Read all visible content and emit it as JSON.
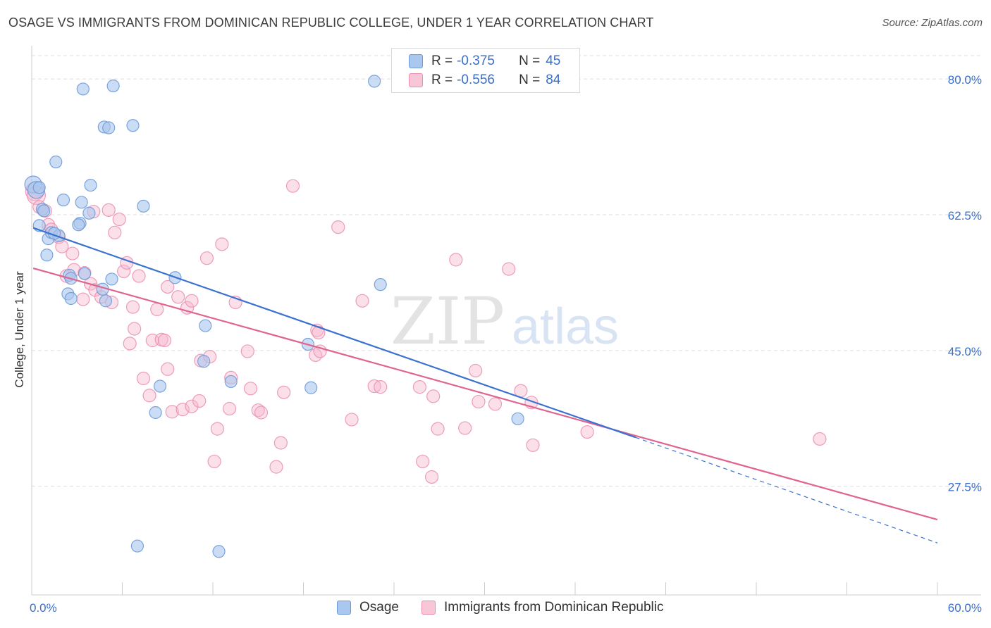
{
  "header": {
    "title": "OSAGE VS IMMIGRANTS FROM DOMINICAN REPUBLIC COLLEGE, UNDER 1 YEAR CORRELATION CHART",
    "source": "Source: ZipAtlas.com"
  },
  "watermark": {
    "zip": "ZIP",
    "atlas": "atlas"
  },
  "legend_top": {
    "r_label": "R =",
    "n_label": "N =",
    "rows": [
      {
        "r": "-0.375",
        "n": "45"
      },
      {
        "r": "-0.556",
        "n": "84"
      }
    ]
  },
  "colors": {
    "osage_fill": "#a9c7ef",
    "osage_stroke": "#6f9ad8",
    "osage_line": "#3a72d0",
    "dom_fill": "#f7b9cf",
    "dom_stroke": "#ea8db0",
    "dom_line": "#e0648f",
    "axis_text": "#3b6fc9",
    "grid": "#dddddd"
  },
  "chart_data": {
    "type": "scatter",
    "title": "OSAGE VS IMMIGRANTS FROM DOMINICAN REPUBLIC COLLEGE, UNDER 1 YEAR CORRELATION CHART",
    "xlabel": "",
    "ylabel": "College, Under 1 year",
    "xlim": [
      0,
      60
    ],
    "ylim": [
      13.5,
      84
    ],
    "x_tick_labels": [
      "0.0%",
      "60.0%"
    ],
    "y_ticks": [
      27.5,
      45.0,
      62.5,
      80.0
    ],
    "y_tick_labels": [
      "27.5%",
      "45.0%",
      "62.5%",
      "80.0%"
    ],
    "grid": true,
    "legend_position": "bottom",
    "series": [
      {
        "name": "Osage",
        "r": -0.375,
        "n": 45,
        "trend": {
          "x0": 0.1,
          "y0": 60.8,
          "x1": 40.0,
          "y1": 33.8,
          "dash_to_x": 60.0,
          "dash_to_y": 20.2
        },
        "points": [
          [
            0.1,
            66.4
          ],
          [
            0.3,
            65.7
          ],
          [
            0.7,
            63.2
          ],
          [
            0.5,
            61.1
          ],
          [
            1.1,
            59.4
          ],
          [
            1.3,
            60.2
          ],
          [
            1.8,
            59.8
          ],
          [
            1.0,
            57.3
          ],
          [
            2.1,
            64.4
          ],
          [
            1.6,
            69.3
          ],
          [
            3.3,
            64.1
          ],
          [
            3.9,
            66.3
          ],
          [
            3.8,
            62.7
          ],
          [
            3.2,
            61.4
          ],
          [
            3.1,
            61.2
          ],
          [
            2.5,
            54.7
          ],
          [
            2.6,
            54.3
          ],
          [
            3.5,
            54.9
          ],
          [
            2.4,
            52.3
          ],
          [
            2.6,
            51.7
          ],
          [
            5.3,
            54.2
          ],
          [
            4.9,
            51.4
          ],
          [
            4.7,
            52.9
          ],
          [
            3.4,
            78.7
          ],
          [
            5.4,
            79.1
          ],
          [
            4.8,
            73.8
          ],
          [
            5.1,
            73.7
          ],
          [
            6.7,
            74.0
          ],
          [
            7.4,
            63.6
          ],
          [
            9.5,
            54.4
          ],
          [
            11.5,
            48.2
          ],
          [
            11.4,
            43.6
          ],
          [
            8.5,
            40.4
          ],
          [
            13.2,
            41.0
          ],
          [
            8.2,
            37.0
          ],
          [
            18.3,
            45.8
          ],
          [
            18.5,
            40.2
          ],
          [
            7.0,
            19.8
          ],
          [
            12.4,
            19.1
          ],
          [
            22.7,
            79.7
          ],
          [
            23.1,
            53.5
          ],
          [
            32.2,
            36.2
          ],
          [
            0.5,
            66.0
          ],
          [
            0.8,
            63.0
          ],
          [
            1.5,
            60.1
          ]
        ]
      },
      {
        "name": "Immigrants from Dominican Republic",
        "r": -0.556,
        "n": 84,
        "trend": {
          "x0": 0.1,
          "y0": 55.6,
          "x1": 60.0,
          "y1": 23.2
        },
        "points": [
          [
            0.2,
            65.5
          ],
          [
            0.3,
            65.0
          ],
          [
            0.5,
            63.5
          ],
          [
            0.9,
            63.0
          ],
          [
            1.1,
            61.2
          ],
          [
            1.3,
            60.6
          ],
          [
            1.8,
            59.6
          ],
          [
            2.0,
            58.4
          ],
          [
            2.7,
            57.5
          ],
          [
            2.8,
            55.4
          ],
          [
            3.5,
            55.0
          ],
          [
            2.3,
            54.6
          ],
          [
            3.9,
            53.6
          ],
          [
            4.2,
            52.8
          ],
          [
            4.6,
            51.9
          ],
          [
            3.4,
            51.6
          ],
          [
            5.3,
            51.2
          ],
          [
            4.1,
            62.9
          ],
          [
            5.1,
            63.1
          ],
          [
            5.5,
            60.2
          ],
          [
            5.8,
            61.9
          ],
          [
            6.1,
            55.2
          ],
          [
            6.3,
            56.3
          ],
          [
            7.1,
            54.6
          ],
          [
            6.7,
            50.6
          ],
          [
            8.3,
            50.3
          ],
          [
            9.0,
            53.2
          ],
          [
            9.7,
            51.9
          ],
          [
            10.3,
            50.5
          ],
          [
            10.6,
            51.4
          ],
          [
            11.6,
            56.9
          ],
          [
            12.6,
            58.7
          ],
          [
            13.5,
            51.2
          ],
          [
            6.8,
            47.8
          ],
          [
            6.5,
            45.9
          ],
          [
            8.0,
            46.3
          ],
          [
            8.6,
            46.4
          ],
          [
            8.8,
            46.3
          ],
          [
            7.4,
            41.4
          ],
          [
            9.0,
            42.6
          ],
          [
            11.2,
            43.7
          ],
          [
            11.8,
            44.2
          ],
          [
            13.2,
            41.5
          ],
          [
            13.1,
            37.5
          ],
          [
            14.3,
            44.9
          ],
          [
            14.5,
            40.1
          ],
          [
            15.0,
            37.3
          ],
          [
            15.2,
            37.0
          ],
          [
            7.8,
            39.2
          ],
          [
            9.3,
            37.1
          ],
          [
            10.0,
            37.4
          ],
          [
            10.6,
            37.8
          ],
          [
            11.1,
            38.5
          ],
          [
            12.3,
            34.9
          ],
          [
            12.1,
            30.7
          ],
          [
            16.7,
            39.6
          ],
          [
            16.5,
            33.1
          ],
          [
            16.2,
            30.0
          ],
          [
            17.3,
            66.2
          ],
          [
            18.9,
            47.6
          ],
          [
            19.0,
            47.3
          ],
          [
            18.8,
            44.4
          ],
          [
            19.1,
            44.9
          ],
          [
            20.3,
            60.9
          ],
          [
            21.2,
            36.1
          ],
          [
            21.9,
            51.4
          ],
          [
            22.7,
            40.4
          ],
          [
            23.1,
            40.3
          ],
          [
            25.7,
            40.3
          ],
          [
            25.9,
            30.7
          ],
          [
            26.5,
            28.7
          ],
          [
            26.6,
            39.1
          ],
          [
            26.9,
            34.9
          ],
          [
            28.7,
            35.0
          ],
          [
            28.1,
            56.7
          ],
          [
            29.4,
            42.4
          ],
          [
            29.6,
            38.4
          ],
          [
            30.7,
            38.1
          ],
          [
            31.6,
            55.5
          ],
          [
            32.4,
            39.8
          ],
          [
            33.1,
            38.3
          ],
          [
            33.2,
            32.8
          ],
          [
            36.8,
            34.5
          ],
          [
            52.2,
            33.6
          ]
        ]
      }
    ]
  },
  "legend_bottom": [
    {
      "label": "Osage"
    },
    {
      "label": "Immigrants from Dominican Republic"
    }
  ]
}
